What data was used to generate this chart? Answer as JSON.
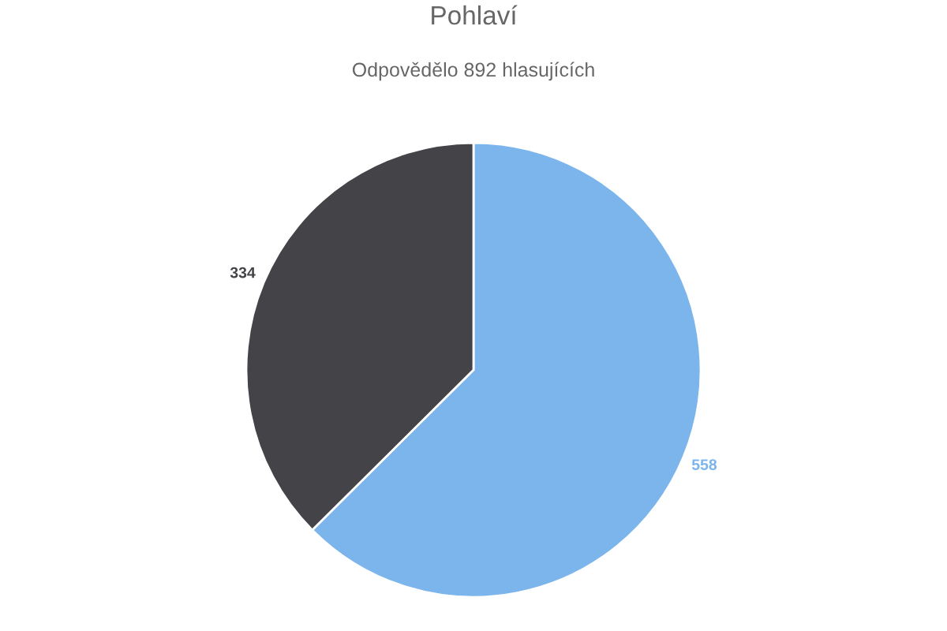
{
  "chart_data": {
    "type": "pie",
    "title": "Pohlaví",
    "subtitle": "Odpovědělo 892 hlasujících",
    "categories": [
      null,
      null
    ],
    "values": [
      558,
      334
    ],
    "colors": [
      "#7cb5ec",
      "#434348"
    ],
    "data_labels": true
  }
}
